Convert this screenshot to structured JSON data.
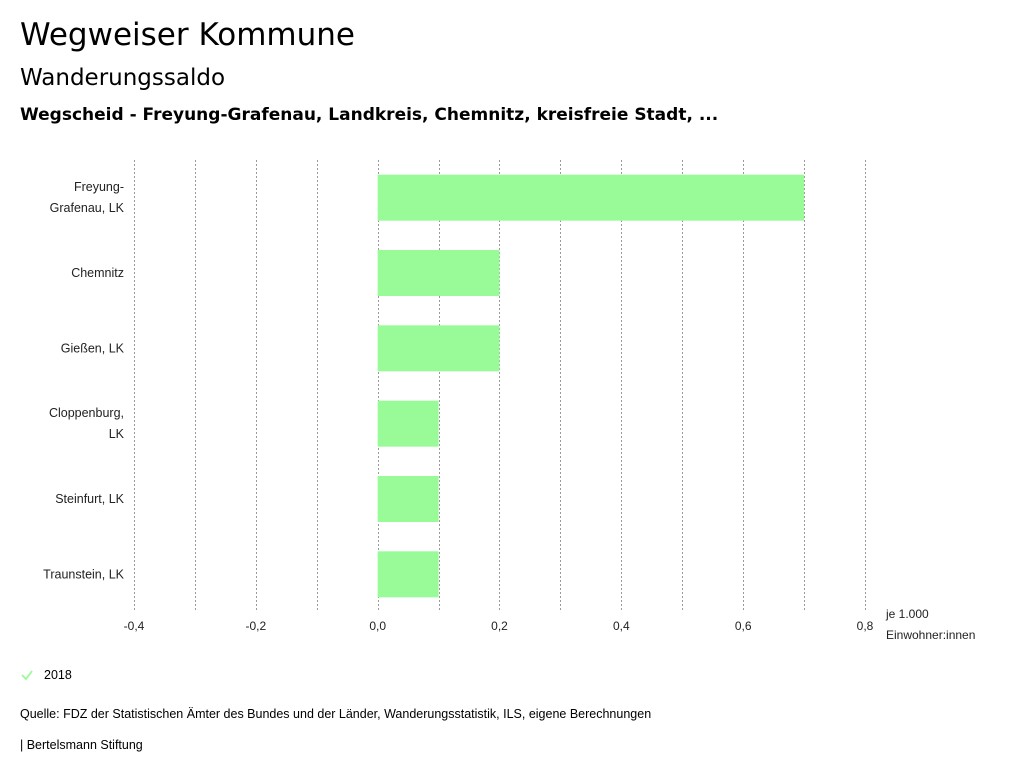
{
  "header": {
    "title": "Wegweiser Kommune",
    "subtitle": "Wanderungssaldo",
    "regions": "Wegscheid - Freyung-Grafenau, Landkreis, Chemnitz, kreisfreie Stadt, ..."
  },
  "chart_data": {
    "type": "bar",
    "orientation": "horizontal",
    "categories": [
      [
        "Freyung-",
        "Grafenau, LK"
      ],
      [
        "Chemnitz"
      ],
      [
        "Gießen, LK"
      ],
      [
        "Cloppenburg,",
        "LK"
      ],
      [
        "Steinfurt, LK"
      ],
      [
        "Traunstein, LK"
      ]
    ],
    "series": [
      {
        "name": "2018",
        "color": "#98fb98",
        "values": [
          0.7,
          0.2,
          0.2,
          0.1,
          0.1,
          0.1
        ]
      }
    ],
    "xlim": [
      -0.4,
      0.8
    ],
    "ticks": [
      -0.4,
      -0.2,
      0.0,
      0.2,
      0.4,
      0.6,
      0.8
    ],
    "tick_labels": [
      "-0,4",
      "-0,2",
      "0,0",
      "0,2",
      "0,4",
      "0,6",
      "0,8"
    ],
    "unit_label": [
      "je 1.000",
      "Einwohner:innen"
    ],
    "grid": true
  },
  "legend": {
    "label": "2018",
    "color": "#98fb98"
  },
  "footer": {
    "source": "Quelle: FDZ der Statistischen Ämter des Bundes und der Länder, Wanderungsstatistik, ILS, eigene Berechnungen",
    "brand": "| Bertelsmann Stiftung"
  }
}
